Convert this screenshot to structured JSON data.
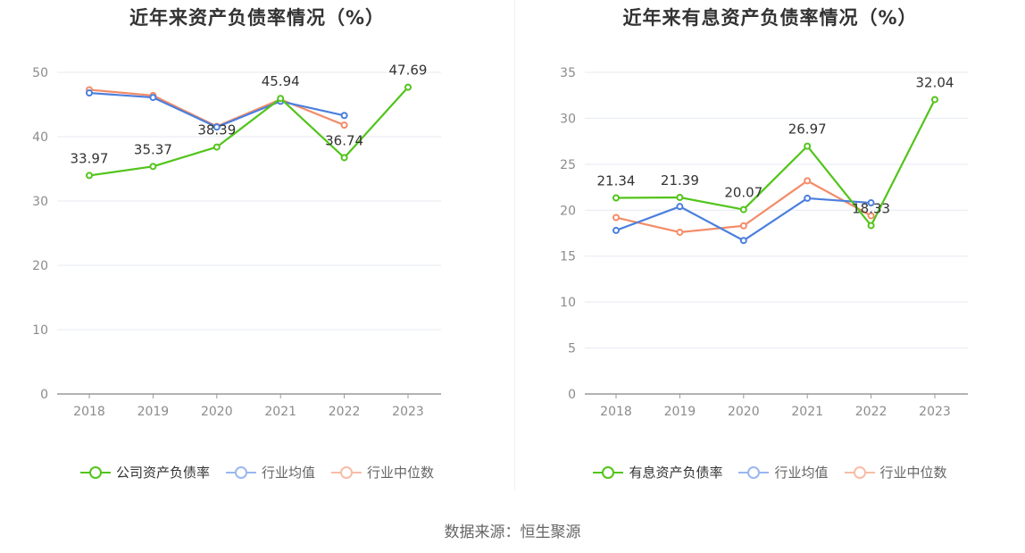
{
  "source": "数据来源：恒生聚源",
  "chart_data": [
    {
      "type": "line",
      "title": "近年来资产负债率情况（%）",
      "categories": [
        "2018",
        "2019",
        "2020",
        "2021",
        "2022",
        "2023"
      ],
      "ylim": [
        0,
        50
      ],
      "yticks": [
        0,
        10,
        20,
        30,
        40,
        50
      ],
      "grid": true,
      "legend_position": "bottom",
      "series": [
        {
          "name": "公司资产负债率",
          "color": "#52c41a",
          "values": [
            33.97,
            35.37,
            38.39,
            45.94,
            36.74,
            47.69
          ],
          "labeled": true
        },
        {
          "name": "行业均值",
          "color": "#4a7fde",
          "values": [
            46.8,
            46.1,
            41.5,
            45.5,
            43.3,
            null
          ],
          "labeled": false
        },
        {
          "name": "行业中位数",
          "color": "#f48b68",
          "values": [
            47.3,
            46.4,
            41.6,
            45.8,
            41.8,
            null
          ],
          "labeled": false
        }
      ]
    },
    {
      "type": "line",
      "title": "近年来有息资产负债率情况（%）",
      "categories": [
        "2018",
        "2019",
        "2020",
        "2021",
        "2022",
        "2023"
      ],
      "ylim": [
        0,
        35
      ],
      "yticks": [
        0,
        5,
        10,
        15,
        20,
        25,
        30,
        35
      ],
      "grid": true,
      "legend_position": "bottom",
      "series": [
        {
          "name": "有息资产负债率",
          "color": "#52c41a",
          "values": [
            21.34,
            21.39,
            20.07,
            26.97,
            18.33,
            32.04
          ],
          "labeled": true
        },
        {
          "name": "行业均值",
          "color": "#4a7fde",
          "values": [
            17.8,
            20.4,
            16.7,
            21.3,
            20.8,
            null
          ],
          "labeled": false
        },
        {
          "name": "行业中位数",
          "color": "#f48b68",
          "values": [
            19.2,
            17.6,
            18.3,
            23.2,
            19.4,
            null
          ],
          "labeled": false
        }
      ]
    }
  ]
}
